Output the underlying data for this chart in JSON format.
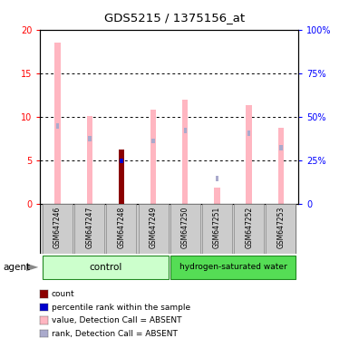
{
  "title": "GDS5215 / 1375156_at",
  "samples": [
    "GSM647246",
    "GSM647247",
    "GSM647248",
    "GSM647249",
    "GSM647250",
    "GSM647251",
    "GSM647252",
    "GSM647253"
  ],
  "value_absent": [
    18.5,
    10.1,
    null,
    10.8,
    11.9,
    1.8,
    11.3,
    8.7
  ],
  "rank_absent": [
    8.9,
    7.5,
    null,
    7.2,
    8.4,
    2.9,
    8.1,
    6.4
  ],
  "count_present": [
    null,
    null,
    6.2,
    null,
    null,
    null,
    null,
    null
  ],
  "rank_present": [
    null,
    null,
    4.9,
    null,
    null,
    null,
    null,
    null
  ],
  "color_value_absent": "#FFB6C1",
  "color_rank_absent": "#AAAACC",
  "color_count_present": "#8B0000",
  "color_rank_present": "#0000CC",
  "ctrl_color": "#AAFFAA",
  "ctrl_edge": "#44AA44",
  "h2_color": "#66EE66",
  "h2_edge": "#228822",
  "legend_items": [
    {
      "label": "count",
      "color": "#8B0000"
    },
    {
      "label": "percentile rank within the sample",
      "color": "#0000CC"
    },
    {
      "label": "value, Detection Call = ABSENT",
      "color": "#FFB6C1"
    },
    {
      "label": "rank, Detection Call = ABSENT",
      "color": "#AAAACC"
    }
  ]
}
